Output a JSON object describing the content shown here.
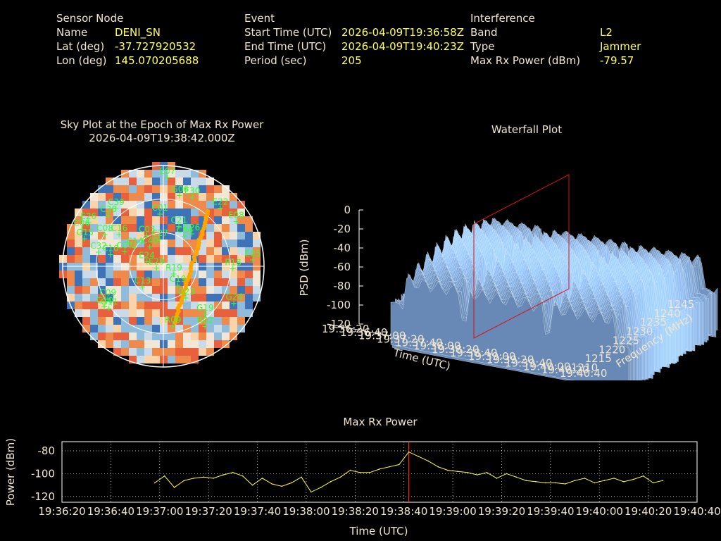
{
  "header": {
    "sensor": {
      "heading": "Sensor Node",
      "rows": [
        {
          "label": "Name",
          "value": "DENI_SN"
        },
        {
          "label": "Lat (deg)",
          "value": "-37.727920532"
        },
        {
          "label": "Lon (deg)",
          "value": "145.070205688"
        }
      ]
    },
    "event": {
      "heading": "Event",
      "rows": [
        {
          "label": "Start Time (UTC)",
          "value": "2026-04-09T19:36:58Z"
        },
        {
          "label": "End Time (UTC)",
          "value": "2026-04-09T19:40:23Z"
        },
        {
          "label": "Period (sec)",
          "value": "205"
        }
      ]
    },
    "interference": {
      "heading": "Interference",
      "rows": [
        {
          "label": "Band",
          "value": "L2"
        },
        {
          "label": "Type",
          "value": "Jammer"
        },
        {
          "label": "Max Rx Power (dBm)",
          "value": "-79.57"
        }
      ]
    }
  },
  "chart_data": [
    {
      "type": "scatter",
      "subtype": "polar-skyplot",
      "title": "Sky Plot at the Epoch of Max Rx Power",
      "subtitle": "2026-04-09T19:38:42.000Z",
      "satellites": [
        {
          "id": "E07",
          "az": 2,
          "el": 88
        },
        {
          "id": "G06",
          "az": 12,
          "el": 72
        },
        {
          "id": "E30",
          "az": 22,
          "el": 74
        },
        {
          "id": "E22",
          "az": 44,
          "el": 80
        },
        {
          "id": "E08",
          "az": 58,
          "el": 84
        },
        {
          "id": "E05",
          "az": 86,
          "el": 88
        },
        {
          "id": "R18",
          "az": 92,
          "el": 68
        },
        {
          "id": "G24",
          "az": 118,
          "el": 78
        },
        {
          "id": "G19",
          "az": 140,
          "el": 62
        },
        {
          "id": "R02",
          "az": 146,
          "el": 72
        },
        {
          "id": "G23",
          "az": 146,
          "el": 38
        },
        {
          "id": "C19",
          "az": 145,
          "el": 23
        },
        {
          "id": "R09",
          "az": 172,
          "el": 60
        },
        {
          "id": "R19",
          "az": 130,
          "el": 12
        },
        {
          "id": "C26",
          "az": 40,
          "el": 42
        },
        {
          "id": "C21",
          "az": 20,
          "el": 42
        },
        {
          "id": "C04",
          "az": 34,
          "el": 36
        },
        {
          "id": "C01",
          "az": 355,
          "el": 52
        },
        {
          "id": "C03",
          "az": 330,
          "el": 35
        },
        {
          "id": "C27",
          "az": 350,
          "el": 27
        },
        {
          "id": "C40",
          "az": 323,
          "el": 24
        },
        {
          "id": "E24",
          "az": 285,
          "el": 18
        },
        {
          "id": "E29",
          "az": 258,
          "el": 8
        },
        {
          "id": "C07",
          "az": 290,
          "el": 42
        },
        {
          "id": "C10",
          "az": 282,
          "el": 55
        },
        {
          "id": "C08",
          "az": 298,
          "el": 67
        },
        {
          "id": "C32",
          "az": 282,
          "el": 67
        },
        {
          "id": "C16",
          "az": 305,
          "el": 55
        },
        {
          "id": "C36",
          "az": 312,
          "el": 75
        },
        {
          "id": "C39",
          "az": 320,
          "el": 75
        },
        {
          "id": "E26",
          "az": 300,
          "el": 87
        },
        {
          "id": "G15",
          "az": 289,
          "el": 84
        },
        {
          "id": "C06",
          "az": 294,
          "el": 90
        },
        {
          "id": "C13",
          "az": 227,
          "el": 30
        },
        {
          "id": "C09",
          "az": 240,
          "el": 65
        },
        {
          "id": "G10",
          "az": 236,
          "el": 72
        },
        {
          "id": "G11",
          "az": 233,
          "el": 69
        },
        {
          "id": "C14",
          "az": 302,
          "el": 35
        }
      ],
      "legend": []
    },
    {
      "type": "area",
      "subtype": "3d-waterfall",
      "title": "Waterfall Plot",
      "xlabel": "Time (UTC)",
      "ylabel": "Frequency (MHz)",
      "zlabel": "PSD (dBm)",
      "z_ticks": [
        0,
        -20,
        -40,
        -60,
        -80,
        -100,
        -120
      ],
      "freq_ticks": [
        1210,
        1215,
        1220,
        1225,
        1230,
        1235,
        1240,
        1245
      ],
      "time_ticks": [
        "19:36:20",
        "19:36:40",
        "19:37:00",
        "19:37:20",
        "19:37:40",
        "19:38:00",
        "19:38:20",
        "19:38:40",
        "19:39:00",
        "19:39:20",
        "19:39:40",
        "19:40:00",
        "19:40:20",
        "19:40:40"
      ],
      "zlim": [
        -120,
        0
      ],
      "flim": [
        1210,
        1245
      ]
    },
    {
      "type": "line",
      "title": "Max Rx Power",
      "xlabel": "Time (UTC)",
      "ylabel": "Power (dBm)",
      "x_ticks": [
        "19:36:20",
        "19:36:40",
        "19:37:00",
        "19:37:20",
        "19:37:40",
        "19:38:00",
        "19:38:20",
        "19:38:40",
        "19:39:00",
        "19:39:20",
        "19:39:40",
        "19:40:00",
        "19:40:20",
        "19:40:40"
      ],
      "y_ticks": [
        -80,
        -100,
        -120
      ],
      "ylim": [
        -125,
        -72
      ],
      "xlim_sec": [
        0,
        260
      ],
      "marker_sec": 142,
      "grid": true,
      "series_color": "#ffff33",
      "marker_color": "#ff2020",
      "x_sec": [
        38,
        42,
        46,
        50,
        54,
        58,
        62,
        66,
        70,
        74,
        78,
        82,
        86,
        90,
        94,
        98,
        102,
        106,
        110,
        114,
        118,
        122,
        126,
        130,
        134,
        138,
        142,
        146,
        150,
        154,
        158,
        162,
        166,
        170,
        174,
        178,
        182,
        186,
        190,
        194,
        198,
        202,
        206,
        210,
        214,
        218,
        222,
        226,
        230,
        234,
        238,
        242,
        246
      ],
      "y": [
        -108,
        -102,
        -112,
        -106,
        -104,
        -103,
        -104,
        -101,
        -99,
        -102,
        -110,
        -104,
        -109,
        -111,
        -108,
        -103,
        -116,
        -112,
        -107,
        -103,
        -97,
        -99,
        -99,
        -96,
        -94,
        -92,
        -81,
        -85,
        -89,
        -94,
        -97,
        -98,
        -99,
        -101,
        -99,
        -104,
        -100,
        -103,
        -106,
        -107,
        -108,
        -108,
        -109,
        -106,
        -104,
        -108,
        -106,
        -104,
        -107,
        -105,
        -102,
        -108,
        -106
      ]
    }
  ]
}
